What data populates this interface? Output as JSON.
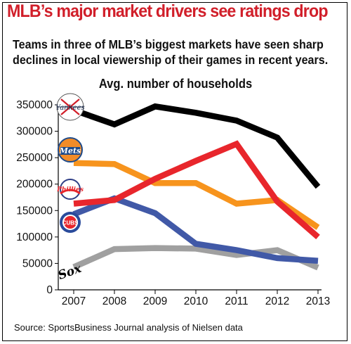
{
  "title": "MLB’s major market drivers see ratings drop",
  "subtitle_lines": [
    "Teams in three of MLB’s biggest markets have seen sharp",
    "declines in local viewership of their games in recent years."
  ],
  "source": "Source: SportsBusiness Journal analysis of Nielsen data",
  "chart_data": {
    "type": "line",
    "title": "Avg. number of households",
    "xlabel": "",
    "ylabel": "",
    "x": [
      "2007",
      "2008",
      "2009",
      "2010",
      "2011",
      "2012",
      "2013"
    ],
    "ylim": [
      0,
      350000
    ],
    "yticks": [
      0,
      50000,
      100000,
      150000,
      200000,
      250000,
      300000,
      350000
    ],
    "ytick_labels": [
      "0",
      "50000",
      "100000",
      "150000",
      "200000",
      "250000",
      "300000",
      "350000"
    ],
    "grid": false,
    "legend": "team logos at left of each line",
    "series": [
      {
        "team_logo": "yankees-logo-icon",
        "color": "#000000",
        "values": [
          340000,
          313000,
          347000,
          335000,
          320000,
          288000,
          195000
        ]
      },
      {
        "team_logo": "mets-logo-icon",
        "color": "#f7941d",
        "values": [
          240000,
          238000,
          202000,
          202000,
          163000,
          170000,
          118000
        ]
      },
      {
        "team_logo": "phillies-logo-icon",
        "color": "#e8262c",
        "values": [
          163000,
          170000,
          210000,
          244000,
          276000,
          167000,
          100000
        ]
      },
      {
        "team_logo": "cubs-logo-icon",
        "color": "#4159a7",
        "values": [
          143000,
          173000,
          145000,
          87000,
          75000,
          60000,
          55000
        ]
      },
      {
        "team_logo": "white-sox-logo-icon",
        "color": "#a0a0a0",
        "values": [
          43000,
          77000,
          79000,
          78000,
          66000,
          75000,
          42000
        ]
      }
    ],
    "logo_text": {
      "yankees": "Yankees",
      "mets": "Mets",
      "phillies": "Phillies",
      "cubs": "CUBS",
      "white_sox": "Sox"
    }
  }
}
